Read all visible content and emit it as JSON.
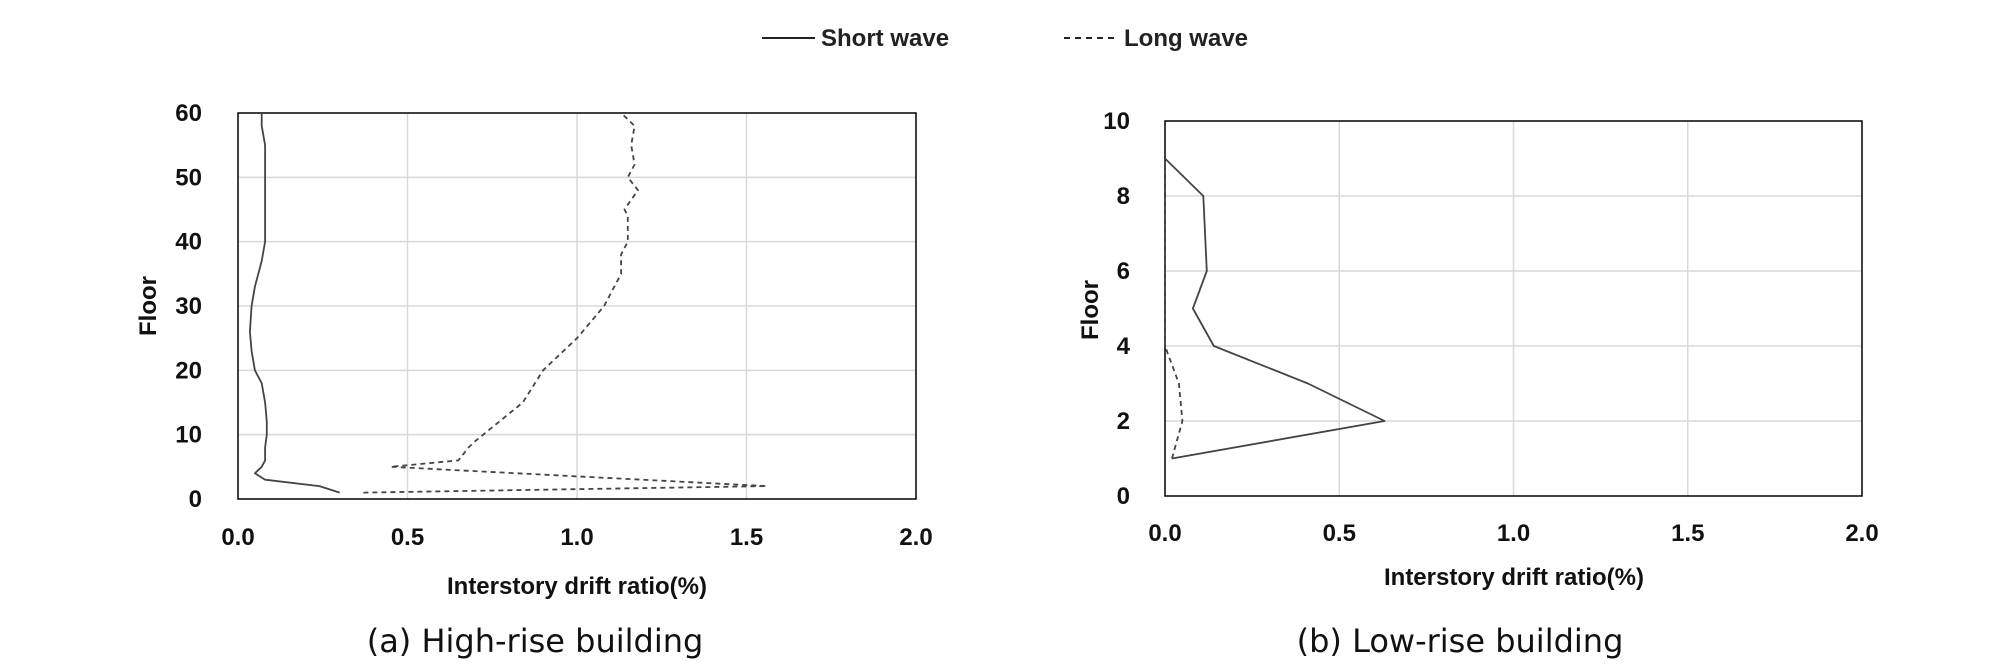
{
  "legend": {
    "entries": [
      {
        "label": "Short wave",
        "style": "solid"
      },
      {
        "label": "Long wave",
        "style": "dashed"
      }
    ]
  },
  "colors": {
    "line": "#444444",
    "grid": "#d9d9d9",
    "frame": "#000000"
  },
  "chart_data": [
    {
      "type": "line",
      "caption": "(a) High-rise building",
      "xlabel": "Interstory drift ratio(%)",
      "ylabel": "Floor",
      "xlim": [
        0,
        2
      ],
      "ylim": [
        0,
        60
      ],
      "xticks": [
        "0.0",
        "0.5",
        "1.0",
        "1.5",
        "2.0"
      ],
      "yticks": [
        "0",
        "10",
        "20",
        "30",
        "40",
        "50",
        "60"
      ],
      "xtick_values": [
        0,
        0.5,
        1.0,
        1.5,
        2.0
      ],
      "ytick_values": [
        0,
        10,
        20,
        30,
        40,
        50,
        60
      ],
      "grid": true,
      "series": [
        {
          "name": "Short wave",
          "style": "solid",
          "points": [
            [
              0.3,
              1
            ],
            [
              0.24,
              2
            ],
            [
              0.08,
              3
            ],
            [
              0.05,
              4
            ],
            [
              0.07,
              5
            ],
            [
              0.08,
              6
            ],
            [
              0.08,
              8
            ],
            [
              0.085,
              10
            ],
            [
              0.085,
              12
            ],
            [
              0.08,
              15
            ],
            [
              0.07,
              18
            ],
            [
              0.05,
              20
            ],
            [
              0.04,
              23
            ],
            [
              0.035,
              26
            ],
            [
              0.04,
              30
            ],
            [
              0.05,
              33
            ],
            [
              0.07,
              37
            ],
            [
              0.08,
              40
            ],
            [
              0.08,
              45
            ],
            [
              0.08,
              50
            ],
            [
              0.08,
              55
            ],
            [
              0.07,
              58
            ],
            [
              0.07,
              60
            ]
          ]
        },
        {
          "name": "Long wave",
          "style": "dashed",
          "points": [
            [
              0.37,
              1
            ],
            [
              1.56,
              2
            ],
            [
              0.45,
              5
            ],
            [
              0.65,
              6
            ],
            [
              0.68,
              8
            ],
            [
              0.7,
              9
            ],
            [
              0.84,
              15
            ],
            [
              0.9,
              20
            ],
            [
              1.0,
              25
            ],
            [
              1.08,
              30
            ],
            [
              1.13,
              35
            ],
            [
              1.13,
              38
            ],
            [
              1.15,
              40
            ],
            [
              1.15,
              44
            ],
            [
              1.14,
              45
            ],
            [
              1.18,
              48
            ],
            [
              1.15,
              50
            ],
            [
              1.17,
              52
            ],
            [
              1.16,
              55
            ],
            [
              1.17,
              58
            ],
            [
              1.13,
              60
            ]
          ]
        }
      ]
    },
    {
      "type": "line",
      "caption": "(b) Low-rise building",
      "xlabel": "Interstory drift ratio(%)",
      "ylabel": "Floor",
      "xlim": [
        0,
        2
      ],
      "ylim": [
        0,
        10
      ],
      "xticks": [
        "0.0",
        "0.5",
        "1.0",
        "1.5",
        "2.0"
      ],
      "yticks": [
        "0",
        "2",
        "4",
        "6",
        "8",
        "10"
      ],
      "xtick_values": [
        0,
        0.5,
        1.0,
        1.5,
        2.0
      ],
      "ytick_values": [
        0,
        2,
        4,
        6,
        8,
        10
      ],
      "grid": true,
      "series": [
        {
          "name": "Short wave",
          "style": "solid",
          "points": [
            [
              0.02,
              1
            ],
            [
              0.63,
              2
            ],
            [
              0.41,
              3
            ],
            [
              0.14,
              4
            ],
            [
              0.08,
              5
            ],
            [
              0.12,
              6
            ],
            [
              0.11,
              8
            ],
            [
              0.0,
              9
            ]
          ]
        },
        {
          "name": "Long wave",
          "style": "dashed",
          "points": [
            [
              0.02,
              1
            ],
            [
              0.05,
              2
            ],
            [
              0.04,
              3
            ],
            [
              0.0,
              4
            ],
            [
              0.0,
              5
            ],
            [
              0.0,
              6
            ],
            [
              0.0,
              8
            ],
            [
              0.0,
              9
            ]
          ]
        }
      ]
    }
  ]
}
